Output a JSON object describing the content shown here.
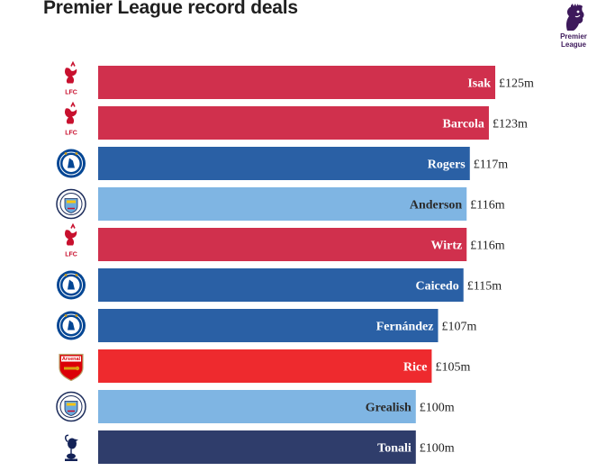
{
  "title": "Premier League record deals",
  "brand_logo": {
    "text": "Premier\nLeague",
    "icon": "premier-league-lion-icon",
    "color": "#3d195b"
  },
  "club_styles": {
    "Liverpool": {
      "bar": "#d0304d",
      "text": "#ffffff",
      "badge_icon": "liverpool-liverbird-icon",
      "badge_text": "LFC"
    },
    "Chelsea": {
      "bar": "#2a60a5",
      "text": "#ffffff",
      "badge_icon": "chelsea-crest-icon"
    },
    "Manchester City": {
      "bar": "#7fb5e3",
      "text": "#2b2b2b",
      "badge_icon": "manchester-city-crest-icon"
    },
    "Arsenal": {
      "bar": "#ee2a2e",
      "text": "#ffffff",
      "badge_icon": "arsenal-crest-icon",
      "badge_text": "Arsenal"
    },
    "Tottenham Hotspur": {
      "bar": "#2f3d6b",
      "text": "#ffffff",
      "badge_icon": "tottenham-cockerel-icon"
    }
  },
  "chart_data": {
    "type": "bar",
    "orientation": "horizontal",
    "title": "Premier League record deals",
    "xlim": [
      0,
      125
    ],
    "value_prefix": "£",
    "value_suffix": "m",
    "categories": [
      "Isak",
      "Barcola",
      "Rogers",
      "Anderson",
      "Wirtz",
      "Caicedo",
      "Fernández",
      "Rice",
      "Grealish",
      "Tonali"
    ],
    "values": [
      125,
      123,
      117,
      116,
      116,
      115,
      107,
      105,
      100,
      100
    ],
    "value_labels": [
      "£125m",
      "£123m",
      "£117m",
      "£116m",
      "£116m",
      "£115m",
      "£107m",
      "£105m",
      "£100m",
      "£100m"
    ],
    "clubs": [
      "Liverpool",
      "Liverpool",
      "Chelsea",
      "Manchester City",
      "Liverpool",
      "Chelsea",
      "Chelsea",
      "Arsenal",
      "Manchester City",
      "Tottenham Hotspur"
    ],
    "grid": false,
    "legend": "none"
  }
}
